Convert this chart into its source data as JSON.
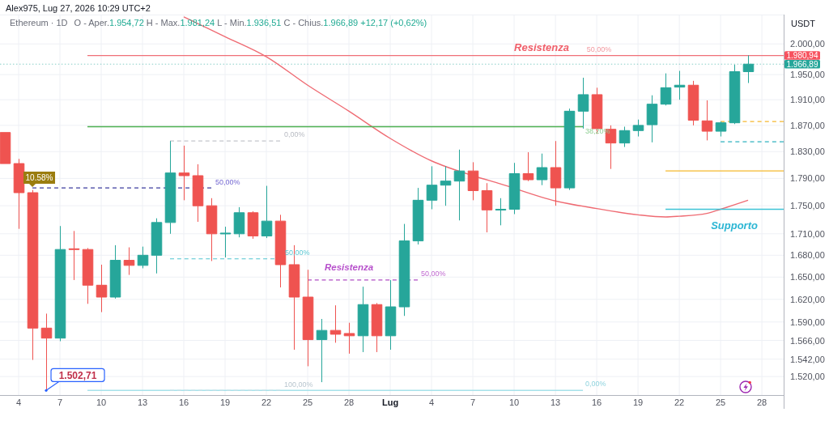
{
  "chart_data": {
    "type": "candlestick",
    "title": "Ethereum · 1D",
    "subtitle": "O - Aper.1.954,72 H - Max.1.981,24 L - Min.1.936,51 C - Chius.1.966,89 +12,17 (+0,62%)",
    "ylabel": "USDT",
    "x": [
      "2026-06-03",
      "2026-06-04",
      "2026-06-05",
      "2026-06-06",
      "2026-06-07",
      "2026-06-08",
      "2026-06-09",
      "2026-06-10",
      "2026-06-11",
      "2026-06-12",
      "2026-06-13",
      "2026-06-14",
      "2026-06-15",
      "2026-06-16",
      "2026-06-17",
      "2026-06-18",
      "2026-06-19",
      "2026-06-20",
      "2026-06-21",
      "2026-06-22",
      "2026-06-23",
      "2026-06-24",
      "2026-06-25",
      "2026-06-26",
      "2026-06-27",
      "2026-06-28",
      "2026-06-29",
      "2026-06-30",
      "2026-07-01",
      "2026-07-02",
      "2026-07-03",
      "2026-07-04",
      "2026-07-05",
      "2026-07-06",
      "2026-07-07",
      "2026-07-08",
      "2026-07-09",
      "2026-07-10",
      "2026-07-11",
      "2026-07-12",
      "2026-07-13",
      "2026-07-14",
      "2026-07-15",
      "2026-07-16",
      "2026-07-17",
      "2026-07-18",
      "2026-07-19",
      "2026-07-20",
      "2026-07-21",
      "2026-07-22",
      "2026-07-23",
      "2026-07-24",
      "2026-07-25",
      "2026-07-26",
      "2026-07-27"
    ],
    "ohlc": [
      [
        1859,
        1859,
        1812,
        1812
      ],
      [
        1812,
        1819,
        1717,
        1769
      ],
      [
        1769,
        1773,
        1541,
        1582
      ],
      [
        1582,
        1601,
        1502.71,
        1569
      ],
      [
        1569,
        1721,
        1565,
        1688
      ],
      [
        1689,
        1714,
        1646,
        1688
      ],
      [
        1688,
        1690,
        1614,
        1639
      ],
      [
        1639,
        1667,
        1603,
        1623
      ],
      [
        1623,
        1694,
        1621,
        1673
      ],
      [
        1673,
        1691,
        1653,
        1666
      ],
      [
        1666,
        1692,
        1662,
        1680
      ],
      [
        1680,
        1732,
        1655,
        1726
      ],
      [
        1726,
        1846,
        1710,
        1798
      ],
      [
        1798,
        1839,
        1758,
        1794
      ],
      [
        1794,
        1811,
        1727,
        1750
      ],
      [
        1750,
        1761,
        1672,
        1710
      ],
      [
        1710,
        1720,
        1677,
        1711
      ],
      [
        1710,
        1748,
        1705,
        1740
      ],
      [
        1740,
        1742,
        1703,
        1707
      ],
      [
        1707,
        1779,
        1704,
        1728
      ],
      [
        1728,
        1737,
        1636,
        1667
      ],
      [
        1667,
        1694,
        1554,
        1623
      ],
      [
        1623,
        1660,
        1533,
        1567
      ],
      [
        1567,
        1594,
        1513,
        1579
      ],
      [
        1579,
        1612,
        1563,
        1574
      ],
      [
        1575,
        1589,
        1549,
        1572
      ],
      [
        1572,
        1637,
        1551,
        1613
      ],
      [
        1613,
        1615,
        1551,
        1572
      ],
      [
        1572,
        1646,
        1554,
        1610
      ],
      [
        1610,
        1724,
        1598,
        1700
      ],
      [
        1700,
        1776,
        1695,
        1758
      ],
      [
        1758,
        1808,
        1745,
        1780
      ],
      [
        1780,
        1808,
        1750,
        1786
      ],
      [
        1786,
        1833,
        1729,
        1801
      ],
      [
        1801,
        1814,
        1758,
        1772
      ],
      [
        1772,
        1783,
        1712,
        1744
      ],
      [
        1744,
        1761,
        1722,
        1745
      ],
      [
        1745,
        1813,
        1738,
        1797
      ],
      [
        1797,
        1829,
        1786,
        1788
      ],
      [
        1788,
        1827,
        1780,
        1806
      ],
      [
        1806,
        1846,
        1750,
        1776
      ],
      [
        1776,
        1896,
        1773,
        1892
      ],
      [
        1892,
        1945,
        1865,
        1918
      ],
      [
        1918,
        1929,
        1857,
        1865
      ],
      [
        1864,
        1870,
        1804,
        1843
      ],
      [
        1843,
        1868,
        1837,
        1862
      ],
      [
        1862,
        1879,
        1853,
        1870
      ],
      [
        1871,
        1917,
        1844,
        1903
      ],
      [
        1903,
        1952,
        1901,
        1929
      ],
      [
        1930,
        1956,
        1910,
        1933
      ],
      [
        1933,
        1940,
        1870,
        1878
      ],
      [
        1877,
        1909,
        1847,
        1861
      ],
      [
        1861,
        1876,
        1853,
        1874
      ],
      [
        1874,
        1966,
        1872,
        1954.72
      ],
      [
        1954.72,
        1981.24,
        1936.51,
        1966.89
      ]
    ],
    "colors": [
      "#ef5350",
      "#ef5350",
      "#ef5350",
      "#ef5350",
      "#26a69a",
      "#ef5350",
      "#ef5350",
      "#ef5350",
      "#26a69a",
      "#ef5350",
      "#26a69a",
      "#26a69a",
      "#26a69a",
      "#ef5350",
      "#ef5350",
      "#ef5350",
      "#26a69a",
      "#26a69a",
      "#ef5350",
      "#26a69a",
      "#ef5350",
      "#ef5350",
      "#ef5350",
      "#26a69a",
      "#ef5350",
      "#ef5350",
      "#26a69a",
      "#ef5350",
      "#26a69a",
      "#26a69a",
      "#26a69a",
      "#26a69a",
      "#26a69a",
      "#26a69a",
      "#ef5350",
      "#ef5350",
      "#26a69a",
      "#26a69a",
      "#ef5350",
      "#26a69a",
      "#ef5350",
      "#26a69a",
      "#26a69a",
      "#ef5350",
      "#ef5350",
      "#26a69a",
      "#26a69a",
      "#26a69a",
      "#26a69a",
      "#26a69a",
      "#ef5350",
      "#ef5350",
      "#26a69a",
      "#26a69a",
      "#26a69a"
    ],
    "xlim": [
      "2026-06-02T15:30",
      "2026-07-29T14:00"
    ],
    "xticks": [
      {
        "value": "2026-06-04",
        "label": "4"
      },
      {
        "value": "2026-06-07",
        "label": "7"
      },
      {
        "value": "2026-06-10",
        "label": "10"
      },
      {
        "value": "2026-06-13",
        "label": "13"
      },
      {
        "value": "2026-06-16",
        "label": "16"
      },
      {
        "value": "2026-06-19",
        "label": "19"
      },
      {
        "value": "2026-06-22",
        "label": "22"
      },
      {
        "value": "2026-06-25",
        "label": "25"
      },
      {
        "value": "2026-06-28",
        "label": "28"
      },
      {
        "value": "2026-07-01",
        "label": "Lug"
      },
      {
        "value": "2026-07-04",
        "label": "4"
      },
      {
        "value": "2026-07-07",
        "label": "7"
      },
      {
        "value": "2026-07-10",
        "label": "10"
      },
      {
        "value": "2026-07-13",
        "label": "13"
      },
      {
        "value": "2026-07-16",
        "label": "16"
      },
      {
        "value": "2026-07-19",
        "label": "19"
      },
      {
        "value": "2026-07-22",
        "label": "22"
      },
      {
        "value": "2026-07-25",
        "label": "25"
      },
      {
        "value": "2026-07-28",
        "label": "28"
      }
    ],
    "ylim": [
      1497,
      2049
    ],
    "yticks": [
      {
        "value": 1520,
        "label": "1.520,00"
      },
      {
        "value": 1542,
        "label": "1.542,00"
      },
      {
        "value": 1566,
        "label": "1.566,00"
      },
      {
        "value": 1590,
        "label": "1.590,00"
      },
      {
        "value": 1620,
        "label": "1.620,00"
      },
      {
        "value": 1650,
        "label": "1.650,00"
      },
      {
        "value": 1680,
        "label": "1.680,00"
      },
      {
        "value": 1710,
        "label": "1.710,00"
      },
      {
        "value": 1750,
        "label": "1.750,00"
      },
      {
        "value": 1790,
        "label": "1.790,00"
      },
      {
        "value": 1830,
        "label": "1.830,00"
      },
      {
        "value": 1870,
        "label": "1.870,00"
      },
      {
        "value": 1910,
        "label": "1.910,00"
      },
      {
        "value": 1950,
        "label": "1.950,00"
      },
      {
        "value": 2000,
        "label": "2.000,00"
      }
    ],
    "log": true,
    "grid": true,
    "series": [
      {
        "type": "line",
        "color": "#ef6b73",
        "x": [
          "2026-06-16",
          "2026-06-19",
          "2026-06-22",
          "2026-06-25",
          "2026-06-28",
          "2026-07-01",
          "2026-07-04",
          "2026-07-07",
          "2026-07-09",
          "2026-07-13",
          "2026-07-16",
          "2026-07-19",
          "2026-07-21",
          "2026-07-22",
          "2026-07-24",
          "2026-07-25",
          "2026-07-27"
        ],
        "values": [
          2045,
          2012,
          1979,
          1933,
          1892,
          1850,
          1816,
          1794,
          1782,
          1757,
          1746,
          1737,
          1734,
          1735,
          1739,
          1745,
          1758
        ]
      },
      {
        "type": "line",
        "color": "#f06f77",
        "x": [
          "2026-06-09",
          "2026-07-29T14:00"
        ],
        "values": [
          1980.94,
          1980.94
        ]
      },
      {
        "type": "line",
        "color": "#4caf50",
        "x": [
          "2026-06-09",
          "2026-07-15"
        ],
        "values": [
          1868,
          1868
        ]
      },
      {
        "type": "line",
        "color": "#a6e1ea",
        "x": [
          "2026-06-09",
          "2026-07-15"
        ],
        "values": [
          1502.71,
          1502.71
        ]
      },
      {
        "type": "line",
        "color": "#c3c6cc",
        "line_style": "dashed",
        "x": [
          "2026-06-15",
          "2026-06-23"
        ],
        "values": [
          1846,
          1846
        ]
      },
      {
        "type": "line",
        "color": "#4fc3cf",
        "line_style": "dashed",
        "x": [
          "2026-06-15",
          "2026-06-22T14:00"
        ],
        "values": [
          1675,
          1675
        ]
      },
      {
        "type": "line",
        "color": "#cfdfe6",
        "line_style": "dashed",
        "x": [
          "2026-06-15",
          "2026-06-23"
        ],
        "values": [
          1503,
          1503
        ]
      },
      {
        "type": "line",
        "color": "#3d3d9e",
        "line_style": "dashed",
        "x": [
          "2026-06-05",
          "2026-06-18"
        ],
        "values": [
          1776,
          1776
        ]
      },
      {
        "type": "line",
        "color": "#b04fc4",
        "line_style": "dashed",
        "x": [
          "2026-06-25",
          "2026-07-03"
        ],
        "values": [
          1646,
          1646
        ]
      },
      {
        "type": "line",
        "color": "#f5b82e",
        "line_style": "dashed",
        "x": [
          "2026-07-25",
          "2026-07-29T14:00"
        ],
        "values": [
          1876,
          1876
        ]
      },
      {
        "type": "line",
        "color": "#2fb3bf",
        "line_style": "dashed",
        "x": [
          "2026-07-25",
          "2026-07-29T14:00"
        ],
        "values": [
          1845,
          1845
        ]
      },
      {
        "type": "line",
        "color": "#f5b82e",
        "x": [
          "2026-07-21",
          "2026-07-29T14:00"
        ],
        "values": [
          1801,
          1801
        ]
      },
      {
        "type": "line",
        "color": "#3cc3d6",
        "x": [
          "2026-07-21",
          "2026-07-29T14:00"
        ],
        "values": [
          1745,
          1745
        ]
      }
    ],
    "ref_lines": [
      {
        "axis": "y",
        "value": 1966.89,
        "label": "1.966,89",
        "line_style": "dotted",
        "color": "#26a69a"
      }
    ],
    "annotations": [
      "Alex975, Lug 27, 2026 10:29 UTC+2",
      {
        "text": "Resistenza",
        "x": "2026-07-12",
        "y": 1980.94
      },
      {
        "text": "50,00%",
        "x": "2026-07-16",
        "y": 1980.94
      },
      {
        "text": "38,20%",
        "x": "2026-07-15",
        "y": 1868
      },
      {
        "text": "0,00%",
        "x": "2026-07-15",
        "y": 1502.71
      },
      {
        "text": "0,00%",
        "x": "2026-06-23",
        "y": 1846
      },
      {
        "text": "50,00%",
        "x": "2026-06-22T14:00",
        "y": 1675
      },
      {
        "text": "100,00%",
        "x": "2026-06-23",
        "y": 1503
      },
      {
        "text": "50,00%",
        "x": "2026-06-18",
        "y": 1776
      },
      {
        "text": "10.58%",
        "x": "2026-06-05",
        "y": 1776
      },
      {
        "text": "Resistenza",
        "x": "2026-06-28",
        "y": 1646
      },
      {
        "text": "50,00%",
        "x": "2026-07-03",
        "y": 1646
      },
      {
        "text": "Supporto",
        "x": "2026-07-26",
        "y": 1745
      },
      {
        "text": "1.502,71",
        "x": "2026-06-06",
        "y": 1502.71
      },
      {
        "text": "1.980,94",
        "x": "2026-07-29T14:00",
        "y": 1980.94
      }
    ]
  }
}
